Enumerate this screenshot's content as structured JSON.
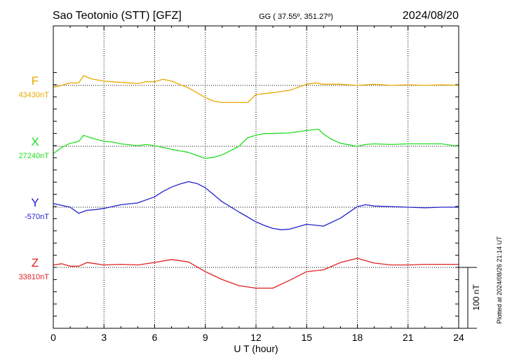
{
  "header": {
    "station": "Sao Teotonio (STT)  [GFZ]",
    "coords": "GG ( 37.55º, 351.27º)",
    "date": "2024/08/20"
  },
  "side_note": "Plotted at 2024/08/26 21:14 UT",
  "scale_label": "100 nT",
  "chart_data": {
    "type": "line",
    "xlabel": "U T (hour)",
    "xlim": [
      0,
      24
    ],
    "xticks": [
      "0",
      "3",
      "6",
      "9",
      "12",
      "15",
      "18",
      "21",
      "24"
    ],
    "grid": true,
    "series": [
      {
        "name": "F",
        "baseline_label": "43430nT",
        "baseline": 43430,
        "color": "#e8a800",
        "x": [
          0,
          0.5,
          1,
          1.5,
          1.8,
          2.2,
          3,
          3.5,
          4,
          5,
          5.5,
          6,
          6.5,
          7,
          8,
          9,
          9.5,
          10,
          11,
          11.5,
          12,
          13,
          14,
          15,
          15.5,
          16,
          17,
          18,
          19,
          20,
          21,
          22,
          23,
          24
        ],
        "y": [
          43427,
          43430,
          43434,
          43434,
          43446,
          43441,
          43437,
          43436,
          43435,
          43433,
          43436,
          43436,
          43440,
          43437,
          43426,
          43410,
          43404,
          43402,
          43402,
          43402,
          43415,
          43418,
          43422,
          43432,
          43434,
          43432,
          43432,
          43430,
          43432,
          43430,
          43431,
          43430,
          43431,
          43430
        ]
      },
      {
        "name": "X",
        "baseline_label": "27240nT",
        "baseline": 27240,
        "color": "#22dd22",
        "x": [
          0,
          0.5,
          1,
          1.5,
          1.8,
          2.2,
          3,
          3.5,
          4,
          5,
          5.5,
          6,
          7,
          8,
          8.5,
          9,
          9.5,
          10,
          11,
          11.5,
          12,
          12.5,
          13,
          14,
          15,
          15.7,
          16,
          16.5,
          17,
          18,
          18.5,
          19,
          20,
          21,
          22,
          23,
          24
        ],
        "y": [
          27228,
          27238,
          27245,
          27248,
          27258,
          27254,
          27248,
          27247,
          27244,
          27241,
          27243,
          27241,
          27235,
          27230,
          27225,
          27220,
          27222,
          27226,
          27240,
          27254,
          27258,
          27261,
          27261,
          27262,
          27266,
          27268,
          27260,
          27251,
          27245,
          27240,
          27243,
          27244,
          27243,
          27244,
          27244,
          27244,
          27240
        ]
      },
      {
        "name": "Y",
        "baseline_label": "-570nT",
        "baseline": -570,
        "color": "#2222cc",
        "x": [
          0,
          0.5,
          1,
          1.5,
          2,
          2.5,
          3,
          4,
          5,
          6,
          6.5,
          7,
          7.5,
          8,
          8.5,
          9,
          10,
          11,
          12,
          12.5,
          13,
          13.5,
          14,
          15,
          16,
          17,
          18,
          18.5,
          19,
          20,
          21,
          22,
          23,
          24
        ],
        "y": [
          -564,
          -567,
          -570,
          -580,
          -575,
          -574,
          -572,
          -566,
          -563,
          -553,
          -544,
          -537,
          -532,
          -528,
          -531,
          -538,
          -561,
          -578,
          -594,
          -600,
          -605,
          -607,
          -606,
          -598,
          -601,
          -588,
          -569,
          -566,
          -568,
          -569,
          -570,
          -571,
          -570,
          -570
        ]
      },
      {
        "name": "Z",
        "baseline_label": "33810nT",
        "baseline": 33810,
        "color": "#dd2222",
        "x": [
          0,
          0.5,
          1,
          1.5,
          2,
          3,
          4,
          5,
          6,
          7,
          8,
          9,
          10,
          11,
          12,
          13,
          14,
          15,
          16,
          17,
          18,
          19,
          20,
          21,
          22,
          23,
          24
        ],
        "y": [
          33814,
          33816,
          33812,
          33812,
          33818,
          33814,
          33815,
          33814,
          33818,
          33823,
          33819,
          33803,
          33790,
          33780,
          33776,
          33776,
          33789,
          33803,
          33806,
          33818,
          33825,
          33817,
          33814,
          33814,
          33815,
          33815,
          33815
        ]
      }
    ]
  }
}
